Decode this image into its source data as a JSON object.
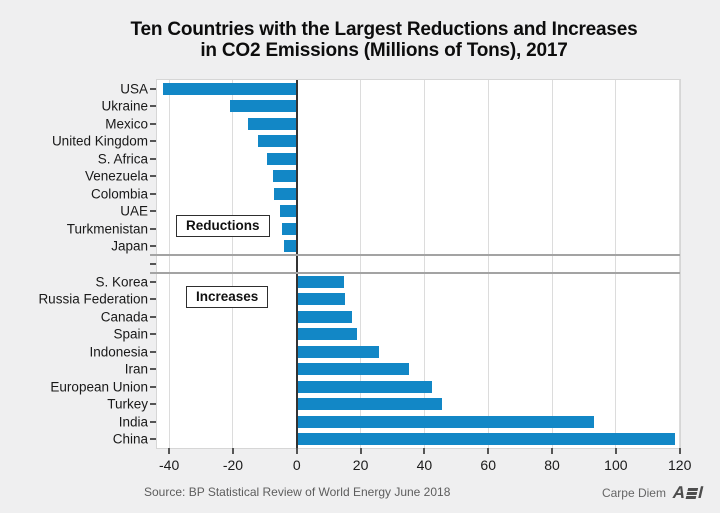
{
  "title": {
    "line1": "Ten Countries with the Largest Reductions and Increases",
    "line2": "in CO2 Emissions (Millions of Tons), 2017"
  },
  "chart_data": {
    "type": "bar",
    "orientation": "horizontal",
    "title": "Ten Countries with the Largest Reductions and Increases in CO2 Emissions (Millions of Tons), 2017",
    "xlabel": "",
    "ylabel": "",
    "xlim": [
      -43.8,
      120.1
    ],
    "x_ticks": [
      -40,
      -20,
      0,
      20,
      40,
      60,
      80,
      100,
      120
    ],
    "grid": true,
    "bar_color": "#1287c6",
    "groups": [
      {
        "label": "Reductions",
        "categories": [
          "USA",
          "Ukraine",
          "Mexico",
          "United Kingdom",
          "S. Africa",
          "Venezuela",
          "Colombia",
          "UAE",
          "Turkmenistan",
          "Japan"
        ],
        "values": [
          -41.8,
          -20.8,
          -15.2,
          -12.1,
          -9.4,
          -7.4,
          -7.1,
          -5.4,
          -4.7,
          -3.9
        ]
      },
      {
        "label": "Increases",
        "categories": [
          "S. Korea",
          "Russia Federation",
          "Canada",
          "Spain",
          "Indonesia",
          "Iran",
          "European Union",
          "Turkey",
          "India",
          "China"
        ],
        "values": [
          14.8,
          15.1,
          17.3,
          19.0,
          25.8,
          35.2,
          42.5,
          45.4,
          93.0,
          118.5
        ]
      }
    ]
  },
  "axis": {
    "tick_labels": [
      "-40",
      "-20",
      "0",
      "20",
      "40",
      "60",
      "80",
      "100",
      "120"
    ]
  },
  "labels": {
    "reductions": "Reductions",
    "increases": "Increases"
  },
  "source": "Source: BP Statistical Review of World Energy June 2018",
  "branding": {
    "carpe_diem": "Carpe Diem",
    "aei": "AEI"
  }
}
